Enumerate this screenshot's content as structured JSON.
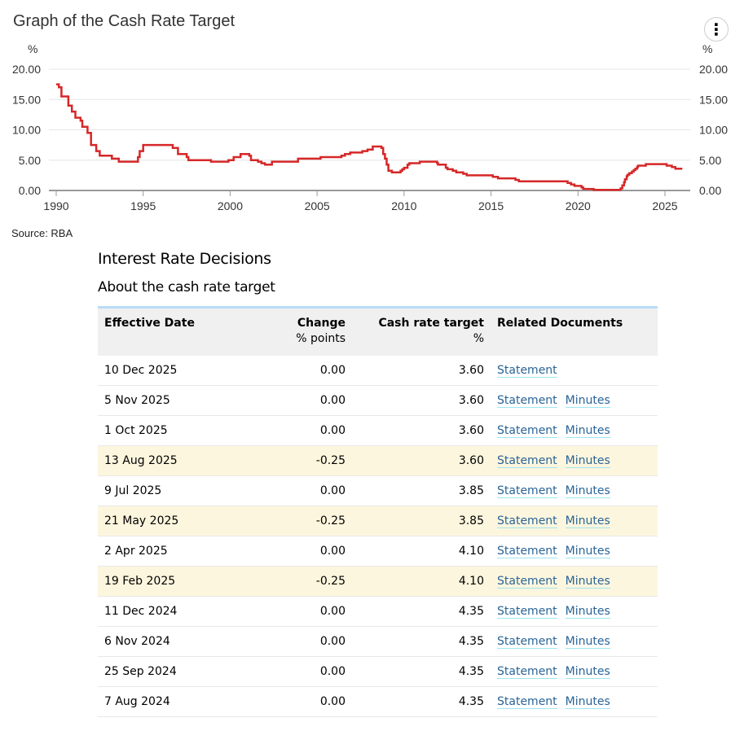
{
  "header": {
    "title": "Graph of the Cash Rate Target",
    "menu_icon": "more-vertical-icon"
  },
  "source": "Source: RBA",
  "chart_data": {
    "type": "line",
    "title": "Graph of the Cash Rate Target",
    "ylabel": "%",
    "ylabel_right": "%",
    "ylim": [
      0,
      20
    ],
    "xlim": [
      1989.6,
      2026.4
    ],
    "yticks": [
      "0.00",
      "5.00",
      "10.00",
      "15.00",
      "20.00"
    ],
    "xticks": [
      "1990",
      "1995",
      "2000",
      "2005",
      "2010",
      "2015",
      "2020",
      "2025"
    ],
    "grid": true,
    "color": "#d62728",
    "series": [
      {
        "name": "Cash rate target",
        "points": [
          [
            1990.0,
            17.5
          ],
          [
            1990.15,
            17
          ],
          [
            1990.3,
            15.5
          ],
          [
            1990.65,
            15.5
          ],
          [
            1990.7,
            14
          ],
          [
            1990.9,
            13
          ],
          [
            1991.1,
            12
          ],
          [
            1991.4,
            11.5
          ],
          [
            1991.5,
            10.5
          ],
          [
            1991.8,
            9.5
          ],
          [
            1992.0,
            7.5
          ],
          [
            1992.3,
            6.5
          ],
          [
            1992.5,
            5.75
          ],
          [
            1993.2,
            5.25
          ],
          [
            1993.6,
            4.75
          ],
          [
            1994.6,
            4.75
          ],
          [
            1994.7,
            5.5
          ],
          [
            1994.8,
            6.5
          ],
          [
            1995.0,
            7.5
          ],
          [
            1996.6,
            7.5
          ],
          [
            1996.7,
            7.0
          ],
          [
            1997.0,
            6.0
          ],
          [
            1997.5,
            5.5
          ],
          [
            1997.6,
            5.0
          ],
          [
            1998.9,
            4.75
          ],
          [
            1999.9,
            5.0
          ],
          [
            2000.2,
            5.5
          ],
          [
            2000.6,
            6.0
          ],
          [
            2001.1,
            5.75
          ],
          [
            2001.2,
            5.0
          ],
          [
            2001.6,
            4.75
          ],
          [
            2001.8,
            4.5
          ],
          [
            2002.0,
            4.25
          ],
          [
            2002.4,
            4.75
          ],
          [
            2003.9,
            5.25
          ],
          [
            2005.2,
            5.5
          ],
          [
            2006.4,
            5.75
          ],
          [
            2006.6,
            6.0
          ],
          [
            2006.9,
            6.25
          ],
          [
            2007.6,
            6.5
          ],
          [
            2007.9,
            6.75
          ],
          [
            2008.2,
            7.25
          ],
          [
            2008.7,
            7.0
          ],
          [
            2008.8,
            6.0
          ],
          [
            2008.9,
            5.25
          ],
          [
            2009.0,
            4.25
          ],
          [
            2009.1,
            3.25
          ],
          [
            2009.3,
            3.0
          ],
          [
            2009.8,
            3.25
          ],
          [
            2009.9,
            3.5
          ],
          [
            2010.0,
            3.75
          ],
          [
            2010.2,
            4.25
          ],
          [
            2010.3,
            4.5
          ],
          [
            2010.9,
            4.75
          ],
          [
            2011.9,
            4.5
          ],
          [
            2011.95,
            4.25
          ],
          [
            2012.4,
            3.75
          ],
          [
            2012.5,
            3.5
          ],
          [
            2012.8,
            3.25
          ],
          [
            2013.0,
            3.0
          ],
          [
            2013.4,
            2.75
          ],
          [
            2013.6,
            2.5
          ],
          [
            2015.1,
            2.25
          ],
          [
            2015.4,
            2.0
          ],
          [
            2016.4,
            1.75
          ],
          [
            2016.6,
            1.5
          ],
          [
            2019.4,
            1.25
          ],
          [
            2019.6,
            1.0
          ],
          [
            2019.8,
            0.75
          ],
          [
            2020.2,
            0.5
          ],
          [
            2020.3,
            0.25
          ],
          [
            2020.9,
            0.1
          ],
          [
            2022.35,
            0.1
          ],
          [
            2022.45,
            0.35
          ],
          [
            2022.55,
            0.85
          ],
          [
            2022.65,
            1.35
          ],
          [
            2022.7,
            1.85
          ],
          [
            2022.8,
            2.35
          ],
          [
            2022.85,
            2.6
          ],
          [
            2022.95,
            2.85
          ],
          [
            2023.1,
            3.1
          ],
          [
            2023.2,
            3.35
          ],
          [
            2023.3,
            3.6
          ],
          [
            2023.4,
            3.85
          ],
          [
            2023.45,
            4.1
          ],
          [
            2023.9,
            4.35
          ],
          [
            2025.1,
            4.1
          ],
          [
            2025.4,
            3.85
          ],
          [
            2025.6,
            3.6
          ],
          [
            2026.0,
            3.6
          ]
        ]
      }
    ]
  },
  "section": {
    "title": "Interest Rate Decisions",
    "subtitle": "About the cash rate target"
  },
  "table": {
    "headers": [
      {
        "label": "Effective Date",
        "sub": ""
      },
      {
        "label": "Change",
        "sub": "% points"
      },
      {
        "label": "Cash rate target",
        "sub": "%"
      },
      {
        "label": "Related Documents",
        "sub": ""
      }
    ],
    "rows": [
      {
        "date": "10 Dec 2025",
        "change": "0.00",
        "rate": "3.60",
        "docs": [
          "Statement"
        ],
        "hl": false
      },
      {
        "date": "5 Nov 2025",
        "change": "0.00",
        "rate": "3.60",
        "docs": [
          "Statement",
          "Minutes"
        ],
        "hl": false
      },
      {
        "date": "1 Oct 2025",
        "change": "0.00",
        "rate": "3.60",
        "docs": [
          "Statement",
          "Minutes"
        ],
        "hl": false
      },
      {
        "date": "13 Aug 2025",
        "change": "-0.25",
        "rate": "3.60",
        "docs": [
          "Statement",
          "Minutes"
        ],
        "hl": true
      },
      {
        "date": "9 Jul 2025",
        "change": "0.00",
        "rate": "3.85",
        "docs": [
          "Statement",
          "Minutes"
        ],
        "hl": false
      },
      {
        "date": "21 May 2025",
        "change": "-0.25",
        "rate": "3.85",
        "docs": [
          "Statement",
          "Minutes"
        ],
        "hl": true
      },
      {
        "date": "2 Apr 2025",
        "change": "0.00",
        "rate": "4.10",
        "docs": [
          "Statement",
          "Minutes"
        ],
        "hl": false
      },
      {
        "date": "19 Feb 2025",
        "change": "-0.25",
        "rate": "4.10",
        "docs": [
          "Statement",
          "Minutes"
        ],
        "hl": true
      },
      {
        "date": "11 Dec 2024",
        "change": "0.00",
        "rate": "4.35",
        "docs": [
          "Statement",
          "Minutes"
        ],
        "hl": false
      },
      {
        "date": "6 Nov 2024",
        "change": "0.00",
        "rate": "4.35",
        "docs": [
          "Statement",
          "Minutes"
        ],
        "hl": false
      },
      {
        "date": "25 Sep 2024",
        "change": "0.00",
        "rate": "4.35",
        "docs": [
          "Statement",
          "Minutes"
        ],
        "hl": false
      },
      {
        "date": "7 Aug 2024",
        "change": "0.00",
        "rate": "4.35",
        "docs": [
          "Statement",
          "Minutes"
        ],
        "hl": false
      }
    ]
  }
}
